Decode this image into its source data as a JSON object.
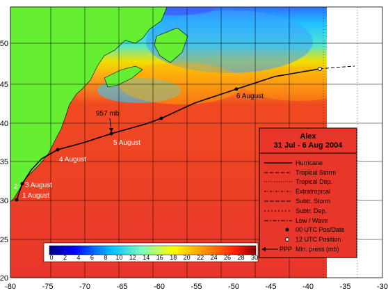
{
  "axes": {
    "x_ticks": [
      "-80",
      "-75",
      "-70",
      "-65",
      "-60",
      "-55",
      "-50",
      "-45",
      "-40",
      "-35",
      "-30"
    ],
    "y_ticks": [
      "20",
      "25",
      "30",
      "35",
      "40",
      "45",
      "50"
    ]
  },
  "track_labels": {
    "press": "957 mb",
    "d1": "1 August",
    "d2": "2",
    "d3": "3 August",
    "d4": "4 August",
    "d5": "5 August",
    "d6": "6 August"
  },
  "legend": {
    "title": "Alex",
    "subtitle": "31 Jul - 6 Aug 2004",
    "items": {
      "hurricane": "Hurricane",
      "tropical_storm": "Tropical Storm",
      "tropical_dep": "Tropical Dep.",
      "extratropical": "Extratropical",
      "subtr_storm": "Subtr. Storm",
      "subtr_dep": "Subtr. Dep.",
      "low_wave": "Low / Wave",
      "utc00": "00 UTC Pos/Date",
      "utc12": "12 UTC Position",
      "min_press": "Min. press (mb)",
      "ppp": "PPP"
    }
  },
  "colorbar": {
    "ticks": [
      "0",
      "2",
      "4",
      "6",
      "8",
      "10",
      "12",
      "14",
      "16",
      "18",
      "20",
      "22",
      "24",
      "26",
      "28",
      "30"
    ]
  },
  "colors": {
    "land": "#66ee33",
    "warm_sea": "#e8362a",
    "track": "#000000"
  }
}
